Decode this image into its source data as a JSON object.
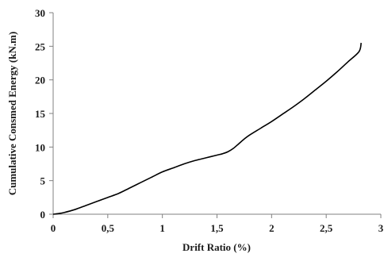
{
  "chart_data": {
    "type": "line",
    "title": "",
    "xlabel": "Drift Ratio (%)",
    "ylabel": "Cumulative Consmed Energy (kN.m)",
    "xlim": [
      0,
      3
    ],
    "ylim": [
      0,
      30
    ],
    "x_ticks": [
      0,
      0.5,
      1,
      1.5,
      2,
      2.5,
      3
    ],
    "x_tick_labels": [
      "0",
      "0,5",
      "1",
      "1,5",
      "2",
      "2,5",
      "3"
    ],
    "y_ticks": [
      0,
      5,
      10,
      15,
      20,
      25,
      30
    ],
    "y_tick_labels": [
      "0",
      "5",
      "10",
      "15",
      "20",
      "25",
      "30"
    ],
    "grid": false,
    "legend": "none",
    "series": [
      {
        "color": "#000000",
        "x": [
          0,
          0.05,
          0.1,
          0.2,
          0.3,
          0.4,
          0.5,
          0.6,
          0.7,
          0.8,
          0.9,
          1.0,
          1.1,
          1.2,
          1.3,
          1.4,
          1.5,
          1.55,
          1.6,
          1.65,
          1.7,
          1.75,
          1.8,
          1.9,
          2.0,
          2.1,
          2.2,
          2.3,
          2.4,
          2.5,
          2.6,
          2.7,
          2.8,
          2.82
        ],
        "y": [
          0,
          0.1,
          0.25,
          0.7,
          1.3,
          1.9,
          2.5,
          3.1,
          3.9,
          4.7,
          5.5,
          6.3,
          6.9,
          7.5,
          8.0,
          8.4,
          8.8,
          9.0,
          9.3,
          9.8,
          10.5,
          11.2,
          11.8,
          12.8,
          13.8,
          14.9,
          16.0,
          17.2,
          18.5,
          19.8,
          21.2,
          22.7,
          24.2,
          25.5
        ]
      }
    ]
  }
}
